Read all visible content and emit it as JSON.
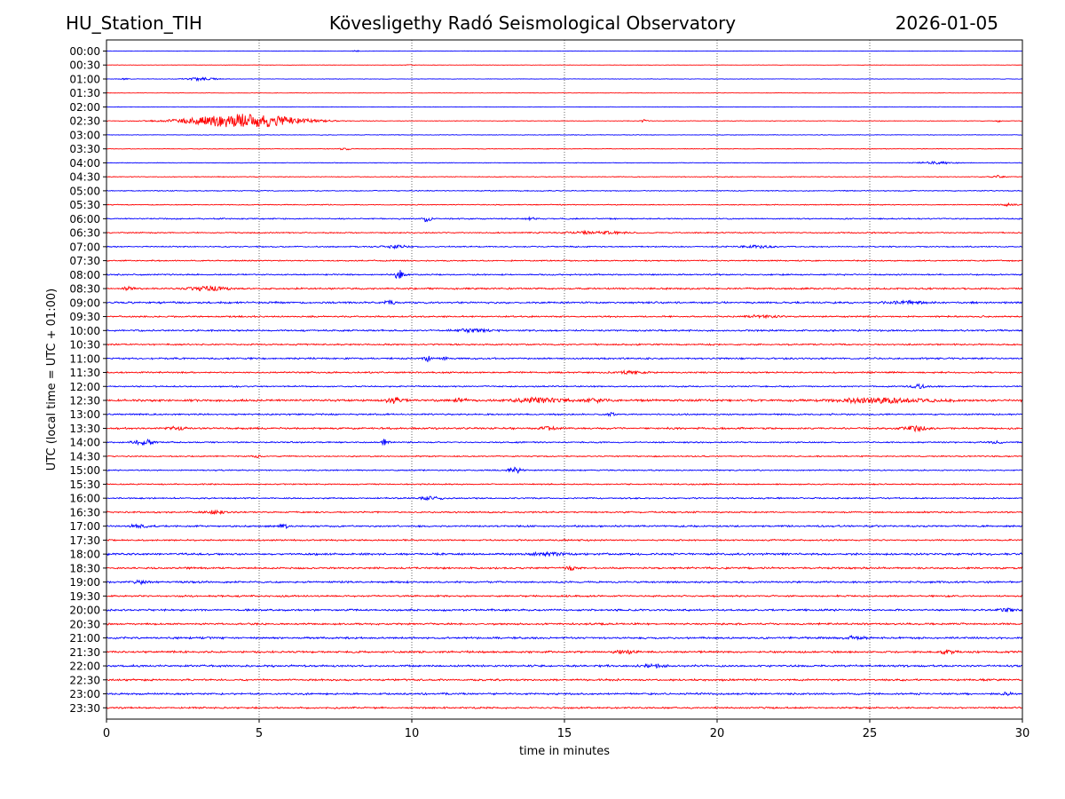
{
  "chart_data": {
    "type": "line",
    "header": {
      "station": "HU_Station_TIH",
      "title": "Kövesligethy Radó Seismological Observatory",
      "date": "2026-01-05"
    },
    "xlabel": "time in minutes",
    "ylabel": "UTC (local time = UTC + 01:00)",
    "xlim": [
      0,
      30
    ],
    "xticks": [
      0,
      5,
      10,
      15,
      20,
      25,
      30
    ],
    "grid_x": [
      5,
      10,
      15,
      20,
      25
    ],
    "colors": [
      "#0000ff",
      "#ff0000"
    ],
    "rows": [
      {
        "label": "00:00",
        "noise": 0.25,
        "events": [
          {
            "t": 8.2,
            "amp": 0.6,
            "dur": 0.15
          }
        ]
      },
      {
        "label": "00:30",
        "noise": 0.25,
        "events": [
          {
            "t": 9.9,
            "amp": 0.6,
            "dur": 0.1
          }
        ]
      },
      {
        "label": "01:00",
        "noise": 0.3,
        "events": [
          {
            "t": 3.1,
            "amp": 1.6,
            "dur": 0.5
          },
          {
            "t": 0.6,
            "amp": 0.8,
            "dur": 0.1
          }
        ]
      },
      {
        "label": "01:30",
        "noise": 0.25,
        "events": []
      },
      {
        "label": "02:00",
        "noise": 0.3,
        "events": []
      },
      {
        "label": "02:30",
        "noise": 0.35,
        "events": [
          {
            "t": 4.5,
            "amp": 8,
            "dur": 1.8
          },
          {
            "t": 17.6,
            "amp": 2,
            "dur": 0.1
          },
          {
            "t": 29.2,
            "amp": 1.2,
            "dur": 0.1
          }
        ]
      },
      {
        "label": "03:00",
        "noise": 0.4,
        "events": []
      },
      {
        "label": "03:30",
        "noise": 0.4,
        "events": [
          {
            "t": 7.8,
            "amp": 1.2,
            "dur": 0.2
          }
        ]
      },
      {
        "label": "04:00",
        "noise": 0.4,
        "events": [
          {
            "t": 27.2,
            "amp": 1.2,
            "dur": 0.6
          }
        ]
      },
      {
        "label": "04:30",
        "noise": 0.5,
        "events": [
          {
            "t": 29.2,
            "amp": 1.4,
            "dur": 0.2
          }
        ]
      },
      {
        "label": "05:00",
        "noise": 0.6,
        "events": []
      },
      {
        "label": "05:30",
        "noise": 0.6,
        "events": [
          {
            "t": 29.5,
            "amp": 1.3,
            "dur": 0.3
          }
        ]
      },
      {
        "label": "06:00",
        "noise": 0.8,
        "events": [
          {
            "t": 10.5,
            "amp": 4,
            "dur": 0.12
          },
          {
            "t": 13.9,
            "amp": 1.2,
            "dur": 0.2
          }
        ]
      },
      {
        "label": "06:30",
        "noise": 0.8,
        "events": [
          {
            "t": 16.0,
            "amp": 1.3,
            "dur": 1.0
          }
        ]
      },
      {
        "label": "07:00",
        "noise": 0.8,
        "events": [
          {
            "t": 9.5,
            "amp": 1.5,
            "dur": 0.4
          },
          {
            "t": 21.3,
            "amp": 1.3,
            "dur": 0.6
          }
        ]
      },
      {
        "label": "07:30",
        "noise": 0.8,
        "events": []
      },
      {
        "label": "08:00",
        "noise": 0.9,
        "events": [
          {
            "t": 9.6,
            "amp": 6,
            "dur": 0.15
          }
        ]
      },
      {
        "label": "08:30",
        "noise": 1.1,
        "events": [
          {
            "t": 3.3,
            "amp": 2.2,
            "dur": 0.6
          },
          {
            "t": 0.7,
            "amp": 1.6,
            "dur": 0.2
          }
        ]
      },
      {
        "label": "09:00",
        "noise": 1.2,
        "events": [
          {
            "t": 9.3,
            "amp": 1.8,
            "dur": 0.2
          },
          {
            "t": 26.2,
            "amp": 1.6,
            "dur": 0.6
          }
        ]
      },
      {
        "label": "09:30",
        "noise": 1.0,
        "events": [
          {
            "t": 21.5,
            "amp": 1.4,
            "dur": 0.5
          }
        ]
      },
      {
        "label": "10:00",
        "noise": 1.1,
        "events": [
          {
            "t": 12.0,
            "amp": 1.4,
            "dur": 0.6
          }
        ]
      },
      {
        "label": "10:30",
        "noise": 1.0,
        "events": []
      },
      {
        "label": "11:00",
        "noise": 1.1,
        "events": [
          {
            "t": 10.5,
            "amp": 3.2,
            "dur": 0.12
          },
          {
            "t": 11.1,
            "amp": 1.5,
            "dur": 0.1
          }
        ]
      },
      {
        "label": "11:30",
        "noise": 1.0,
        "events": [
          {
            "t": 17.2,
            "amp": 1.4,
            "dur": 0.5
          }
        ]
      },
      {
        "label": "12:00",
        "noise": 0.9,
        "events": [
          {
            "t": 26.6,
            "amp": 1.8,
            "dur": 0.3
          }
        ]
      },
      {
        "label": "12:30",
        "noise": 1.4,
        "events": [
          {
            "t": 9.5,
            "amp": 3.2,
            "dur": 0.3
          },
          {
            "t": 14.2,
            "amp": 2.5,
            "dur": 0.8
          },
          {
            "t": 11.6,
            "amp": 2.2,
            "dur": 0.2
          },
          {
            "t": 25.4,
            "amp": 2.3,
            "dur": 1.6
          },
          {
            "t": 16.0,
            "amp": 2,
            "dur": 0.3
          }
        ]
      },
      {
        "label": "13:00",
        "noise": 1.0,
        "events": [
          {
            "t": 16.5,
            "amp": 1.5,
            "dur": 0.2
          }
        ]
      },
      {
        "label": "13:30",
        "noise": 1.2,
        "events": [
          {
            "t": 26.5,
            "amp": 2.2,
            "dur": 0.4
          },
          {
            "t": 2.3,
            "amp": 1.5,
            "dur": 0.3
          },
          {
            "t": 14.5,
            "amp": 1.5,
            "dur": 0.3
          }
        ]
      },
      {
        "label": "14:00",
        "noise": 0.9,
        "events": [
          {
            "t": 1.2,
            "amp": 3,
            "dur": 0.3
          },
          {
            "t": 9.1,
            "amp": 4,
            "dur": 0.12
          },
          {
            "t": 29.2,
            "amp": 1.4,
            "dur": 0.2
          }
        ]
      },
      {
        "label": "14:30",
        "noise": 0.8,
        "events": [
          {
            "t": 4.9,
            "amp": 1.5,
            "dur": 0.15
          }
        ]
      },
      {
        "label": "15:00",
        "noise": 0.8,
        "events": [
          {
            "t": 13.4,
            "amp": 3.6,
            "dur": 0.2
          }
        ]
      },
      {
        "label": "15:30",
        "noise": 0.8,
        "events": []
      },
      {
        "label": "16:00",
        "noise": 0.9,
        "events": [
          {
            "t": 10.6,
            "amp": 1.5,
            "dur": 0.4
          }
        ]
      },
      {
        "label": "16:30",
        "noise": 1.0,
        "events": [
          {
            "t": 3.5,
            "amp": 1.5,
            "dur": 0.4
          }
        ]
      },
      {
        "label": "17:00",
        "noise": 1.1,
        "events": [
          {
            "t": 5.8,
            "amp": 3.4,
            "dur": 0.12
          },
          {
            "t": 1.1,
            "amp": 1.8,
            "dur": 0.3
          }
        ]
      },
      {
        "label": "17:30",
        "noise": 1.0,
        "events": []
      },
      {
        "label": "18:00",
        "noise": 1.3,
        "events": [
          {
            "t": 14.5,
            "amp": 1.6,
            "dur": 0.5
          }
        ]
      },
      {
        "label": "18:30",
        "noise": 1.2,
        "events": [
          {
            "t": 15.2,
            "amp": 2,
            "dur": 0.2
          }
        ]
      },
      {
        "label": "19:00",
        "noise": 1.2,
        "events": [
          {
            "t": 1.1,
            "amp": 1.5,
            "dur": 0.2
          }
        ]
      },
      {
        "label": "19:30",
        "noise": 1.1,
        "events": []
      },
      {
        "label": "20:00",
        "noise": 1.2,
        "events": [
          {
            "t": 29.5,
            "amp": 1.5,
            "dur": 0.3
          }
        ]
      },
      {
        "label": "20:30",
        "noise": 1.2,
        "events": []
      },
      {
        "label": "21:00",
        "noise": 1.3,
        "events": [
          {
            "t": 24.5,
            "amp": 1.5,
            "dur": 0.3
          }
        ]
      },
      {
        "label": "21:30",
        "noise": 1.3,
        "events": [
          {
            "t": 17.0,
            "amp": 1.6,
            "dur": 0.3
          },
          {
            "t": 27.5,
            "amp": 1.4,
            "dur": 0.3
          }
        ]
      },
      {
        "label": "22:00",
        "noise": 1.3,
        "events": [
          {
            "t": 18.0,
            "amp": 1.5,
            "dur": 0.4
          }
        ]
      },
      {
        "label": "22:30",
        "noise": 1.2,
        "events": []
      },
      {
        "label": "23:00",
        "noise": 1.2,
        "events": [
          {
            "t": 29.5,
            "amp": 1.4,
            "dur": 0.2
          }
        ]
      },
      {
        "label": "23:30",
        "noise": 1.1,
        "events": []
      }
    ]
  }
}
